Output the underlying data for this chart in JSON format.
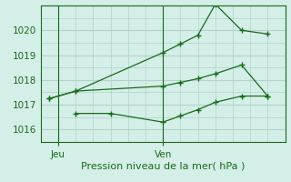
{
  "xlabel": "Pression niveau de la mer( hPa )",
  "background_color": "#d4eee8",
  "grid_color": "#b0d4cc",
  "line_color": "#1a6b1a",
  "ylim": [
    1015.5,
    1021.0
  ],
  "yticks": [
    1016,
    1017,
    1018,
    1019,
    1020
  ],
  "xtick_labels": [
    "Jeu",
    "Ven"
  ],
  "xtick_positions": [
    1,
    7
  ],
  "xlim": [
    0,
    14
  ],
  "vlines": [
    1,
    7
  ],
  "series": [
    {
      "x": [
        0.5,
        2,
        7,
        8,
        9,
        10,
        11.5,
        13
      ],
      "y": [
        1017.25,
        1017.55,
        1019.1,
        1019.45,
        1019.8,
        1021.05,
        1020.0,
        1019.85
      ]
    },
    {
      "x": [
        0.5,
        2,
        7,
        8,
        9,
        10,
        11.5,
        13
      ],
      "y": [
        1017.25,
        1017.55,
        1017.75,
        1017.9,
        1018.05,
        1018.25,
        1018.6,
        1017.35
      ]
    },
    {
      "x": [
        2,
        4,
        7,
        8,
        9,
        10,
        11.5,
        13
      ],
      "y": [
        1016.65,
        1016.65,
        1016.3,
        1016.55,
        1016.8,
        1017.1,
        1017.35,
        1017.35
      ]
    }
  ]
}
